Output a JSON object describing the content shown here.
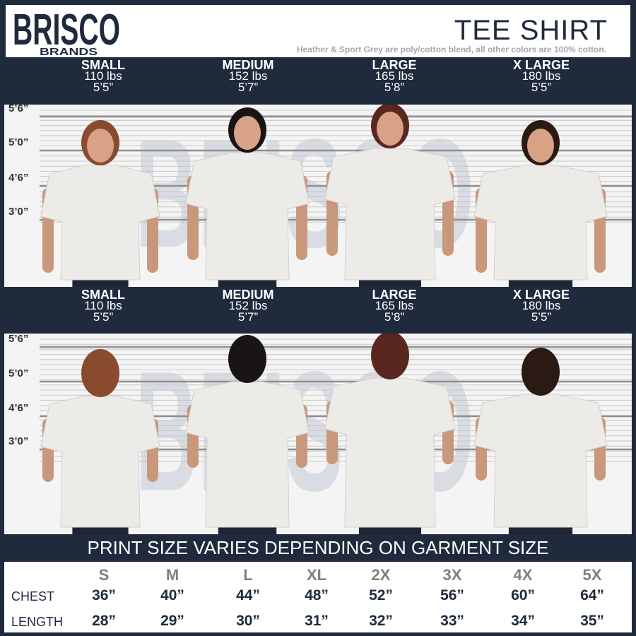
{
  "brand": {
    "logo_text": "BRISCO",
    "logo_sub": "BRANDS"
  },
  "header": {
    "title": "TEE SHIRT",
    "note": "Heather & Sport Grey are poly/cotton blend, all other colors are 100% cotton."
  },
  "models": [
    {
      "size": "SMALL",
      "weight": "110 lbs",
      "height": "5’5”"
    },
    {
      "size": "MEDIUM",
      "weight": "152 lbs",
      "height": "5’7”"
    },
    {
      "size": "LARGE",
      "weight": "165 lbs",
      "height": "5’8”"
    },
    {
      "size": "X LARGE",
      "weight": "180 lbs",
      "height": "5’5”"
    }
  ],
  "height_scale": [
    "5’6”",
    "5’0”",
    "4’6”",
    "3’0”"
  ],
  "banner": "PRINT SIZE VARIES DEPENDING ON GARMENT SIZE",
  "size_table": {
    "sizes": [
      "S",
      "M",
      "L",
      "XL",
      "2X",
      "3X",
      "4X",
      "5X"
    ],
    "rows": [
      {
        "label": "CHEST",
        "values": [
          "36”",
          "40”",
          "44”",
          "48”",
          "52”",
          "56”",
          "60”",
          "64”"
        ]
      },
      {
        "label": "LENGTH",
        "values": [
          "28”",
          "29”",
          "30”",
          "31”",
          "32”",
          "33”",
          "34”",
          "35”"
        ]
      }
    ]
  },
  "colors": {
    "navy": "#1f2a3c",
    "shirt": "#ecebe8",
    "watermark": "#c3cad6"
  }
}
